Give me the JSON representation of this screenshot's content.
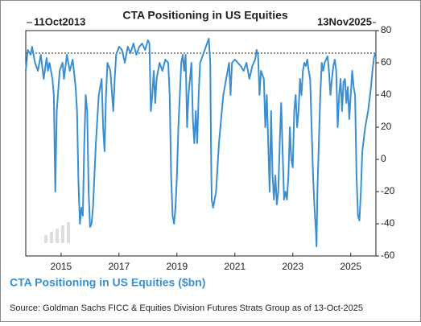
{
  "chart_data": {
    "type": "line",
    "title": "CTA Positioning in US Equities",
    "start_label": "11Oct2013",
    "end_label": "13Nov2025",
    "source": "Source: Goldman Sachs FICC & Equities Division Futures Strats Group as of 13-Oct-2025",
    "x": [
      2013.78,
      2013.85,
      2013.95,
      2014.0,
      2014.1,
      2014.2,
      2014.3,
      2014.4,
      2014.5,
      2014.55,
      2014.6,
      2014.7,
      2014.75,
      2014.8,
      2014.85,
      2014.95,
      2015.05,
      2015.1,
      2015.2,
      2015.3,
      2015.4,
      2015.5,
      2015.55,
      2015.6,
      2015.65,
      2015.7,
      2015.75,
      2015.8,
      2015.85,
      2015.9,
      2015.95,
      2016.0,
      2016.05,
      2016.1,
      2016.2,
      2016.3,
      2016.4,
      2016.45,
      2016.5,
      2016.55,
      2016.6,
      2016.7,
      2016.8,
      2016.85,
      2016.9,
      2017.0,
      2017.1,
      2017.2,
      2017.3,
      2017.4,
      2017.5,
      2017.6,
      2017.7,
      2017.8,
      2017.9,
      2018.0,
      2018.05,
      2018.1,
      2018.15,
      2018.2,
      2018.25,
      2018.3,
      2018.4,
      2018.5,
      2018.6,
      2018.7,
      2018.75,
      2018.8,
      2018.85,
      2018.9,
      2018.95,
      2019.0,
      2019.05,
      2019.1,
      2019.15,
      2019.2,
      2019.25,
      2019.3,
      2019.35,
      2019.4,
      2019.5,
      2019.55,
      2019.6,
      2019.65,
      2019.7,
      2019.75,
      2019.8,
      2019.9,
      2020.0,
      2020.1,
      2020.15,
      2020.18,
      2020.2,
      2020.25,
      2020.35,
      2020.45,
      2020.55,
      2020.6,
      2020.7,
      2020.8,
      2020.85,
      2020.9,
      2021.0,
      2021.1,
      2021.2,
      2021.3,
      2021.4,
      2021.5,
      2021.6,
      2021.7,
      2021.75,
      2021.8,
      2021.85,
      2021.9,
      2022.0,
      2022.05,
      2022.1,
      2022.15,
      2022.2,
      2022.25,
      2022.3,
      2022.35,
      2022.4,
      2022.45,
      2022.5,
      2022.55,
      2022.6,
      2022.65,
      2022.7,
      2022.75,
      2022.8,
      2022.85,
      2022.9,
      2022.95,
      2023.0,
      2023.05,
      2023.1,
      2023.15,
      2023.2,
      2023.25,
      2023.3,
      2023.35,
      2023.4,
      2023.45,
      2023.5,
      2023.55,
      2023.6,
      2023.65,
      2023.7,
      2023.75,
      2023.8,
      2023.82,
      2023.85,
      2023.9,
      2023.95,
      2024.0,
      2024.05,
      2024.1,
      2024.15,
      2024.2,
      2024.25,
      2024.3,
      2024.35,
      2024.4,
      2024.45,
      2024.5,
      2024.55,
      2024.6,
      2024.65,
      2024.7,
      2024.75,
      2024.8,
      2024.85,
      2024.9,
      2024.95,
      2025.0,
      2025.05,
      2025.1,
      2025.15,
      2025.2,
      2025.25,
      2025.3,
      2025.35,
      2025.4,
      2025.5,
      2025.6,
      2025.7,
      2025.75,
      2025.8,
      2025.85
    ],
    "series": [
      {
        "name": "CTA Positioning in US Equities ($bn)",
        "color": "#3a8fd1",
        "values": [
          55,
          68,
          65,
          70,
          60,
          55,
          65,
          50,
          63,
          55,
          60,
          50,
          40,
          -20,
          30,
          55,
          60,
          50,
          65,
          55,
          62,
          45,
          30,
          -15,
          -40,
          -30,
          -35,
          10,
          40,
          30,
          -20,
          -42,
          -40,
          -30,
          10,
          40,
          50,
          20,
          5,
          40,
          60,
          55,
          30,
          50,
          65,
          70,
          68,
          60,
          70,
          66,
          72,
          65,
          70,
          72,
          68,
          74,
          72,
          30,
          40,
          55,
          35,
          50,
          60,
          55,
          62,
          60,
          40,
          -10,
          -35,
          -40,
          -30,
          -10,
          20,
          40,
          60,
          65,
          55,
          65,
          20,
          40,
          60,
          25,
          10,
          30,
          10,
          40,
          60,
          65,
          70,
          75,
          60,
          0,
          -25,
          -30,
          -20,
          10,
          30,
          40,
          50,
          60,
          40,
          60,
          62,
          60,
          58,
          55,
          60,
          50,
          58,
          62,
          68,
          65,
          40,
          55,
          50,
          20,
          40,
          10,
          -20,
          30,
          -10,
          -25,
          -10,
          -28,
          -20,
          10,
          35,
          5,
          -25,
          -20,
          -25,
          -10,
          20,
          0,
          -5,
          30,
          40,
          20,
          30,
          50,
          40,
          55,
          60,
          58,
          62,
          55,
          50,
          20,
          -10,
          -30,
          -45,
          -54,
          -20,
          10,
          40,
          60,
          55,
          60,
          62,
          64,
          55,
          40,
          50,
          58,
          62,
          55,
          20,
          40,
          50,
          30,
          48,
          50,
          35,
          45,
          25,
          40,
          55,
          45,
          40,
          -10,
          -35,
          -38,
          -20,
          5,
          20,
          30,
          45,
          55,
          63,
          66
        ]
      }
    ],
    "hline": 66,
    "xlim": [
      2013.78,
      2025.87
    ],
    "xticks": [
      2015,
      2017,
      2019,
      2021,
      2023,
      2025
    ],
    "ylim": [
      -60,
      80
    ],
    "yticks": [
      -60,
      -40,
      -20,
      0,
      20,
      40,
      60,
      80
    ]
  }
}
